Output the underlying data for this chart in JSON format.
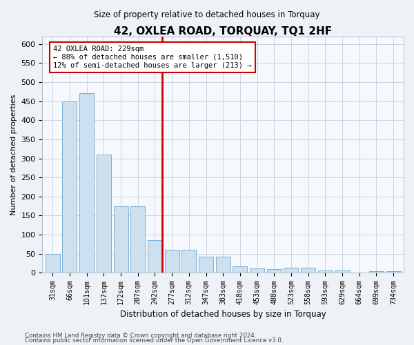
{
  "title": "42, OXLEA ROAD, TORQUAY, TQ1 2HF",
  "subtitle": "Size of property relative to detached houses in Torquay",
  "xlabel": "Distribution of detached houses by size in Torquay",
  "ylabel": "Number of detached properties",
  "categories": [
    "31sqm",
    "66sqm",
    "101sqm",
    "137sqm",
    "172sqm",
    "207sqm",
    "242sqm",
    "277sqm",
    "312sqm",
    "347sqm",
    "383sqm",
    "418sqm",
    "453sqm",
    "488sqm",
    "523sqm",
    "558sqm",
    "593sqm",
    "629sqm",
    "664sqm",
    "699sqm",
    "734sqm"
  ],
  "values": [
    50,
    450,
    470,
    310,
    175,
    175,
    85,
    60,
    60,
    43,
    43,
    17,
    12,
    10,
    13,
    13,
    7,
    7,
    0,
    5,
    5
  ],
  "bar_color": "#cce0f0",
  "bar_edge_color": "#7ab0d4",
  "vline_index": 6,
  "vline_color": "#cc0000",
  "annotation_text": "42 OXLEA ROAD: 229sqm\n← 88% of detached houses are smaller (1,510)\n12% of semi-detached houses are larger (213) →",
  "annotation_box_color": "#ffffff",
  "annotation_box_edge_color": "#cc0000",
  "ylim": [
    0,
    620
  ],
  "yticks": [
    0,
    50,
    100,
    150,
    200,
    250,
    300,
    350,
    400,
    450,
    500,
    550,
    600
  ],
  "footer_line1": "Contains HM Land Registry data © Crown copyright and database right 2024.",
  "footer_line2": "Contains public sector information licensed under the Open Government Licence v3.0.",
  "bg_color": "#eef2f7",
  "plot_bg_color": "#f5f8fc",
  "grid_color": "#c8d4e0"
}
